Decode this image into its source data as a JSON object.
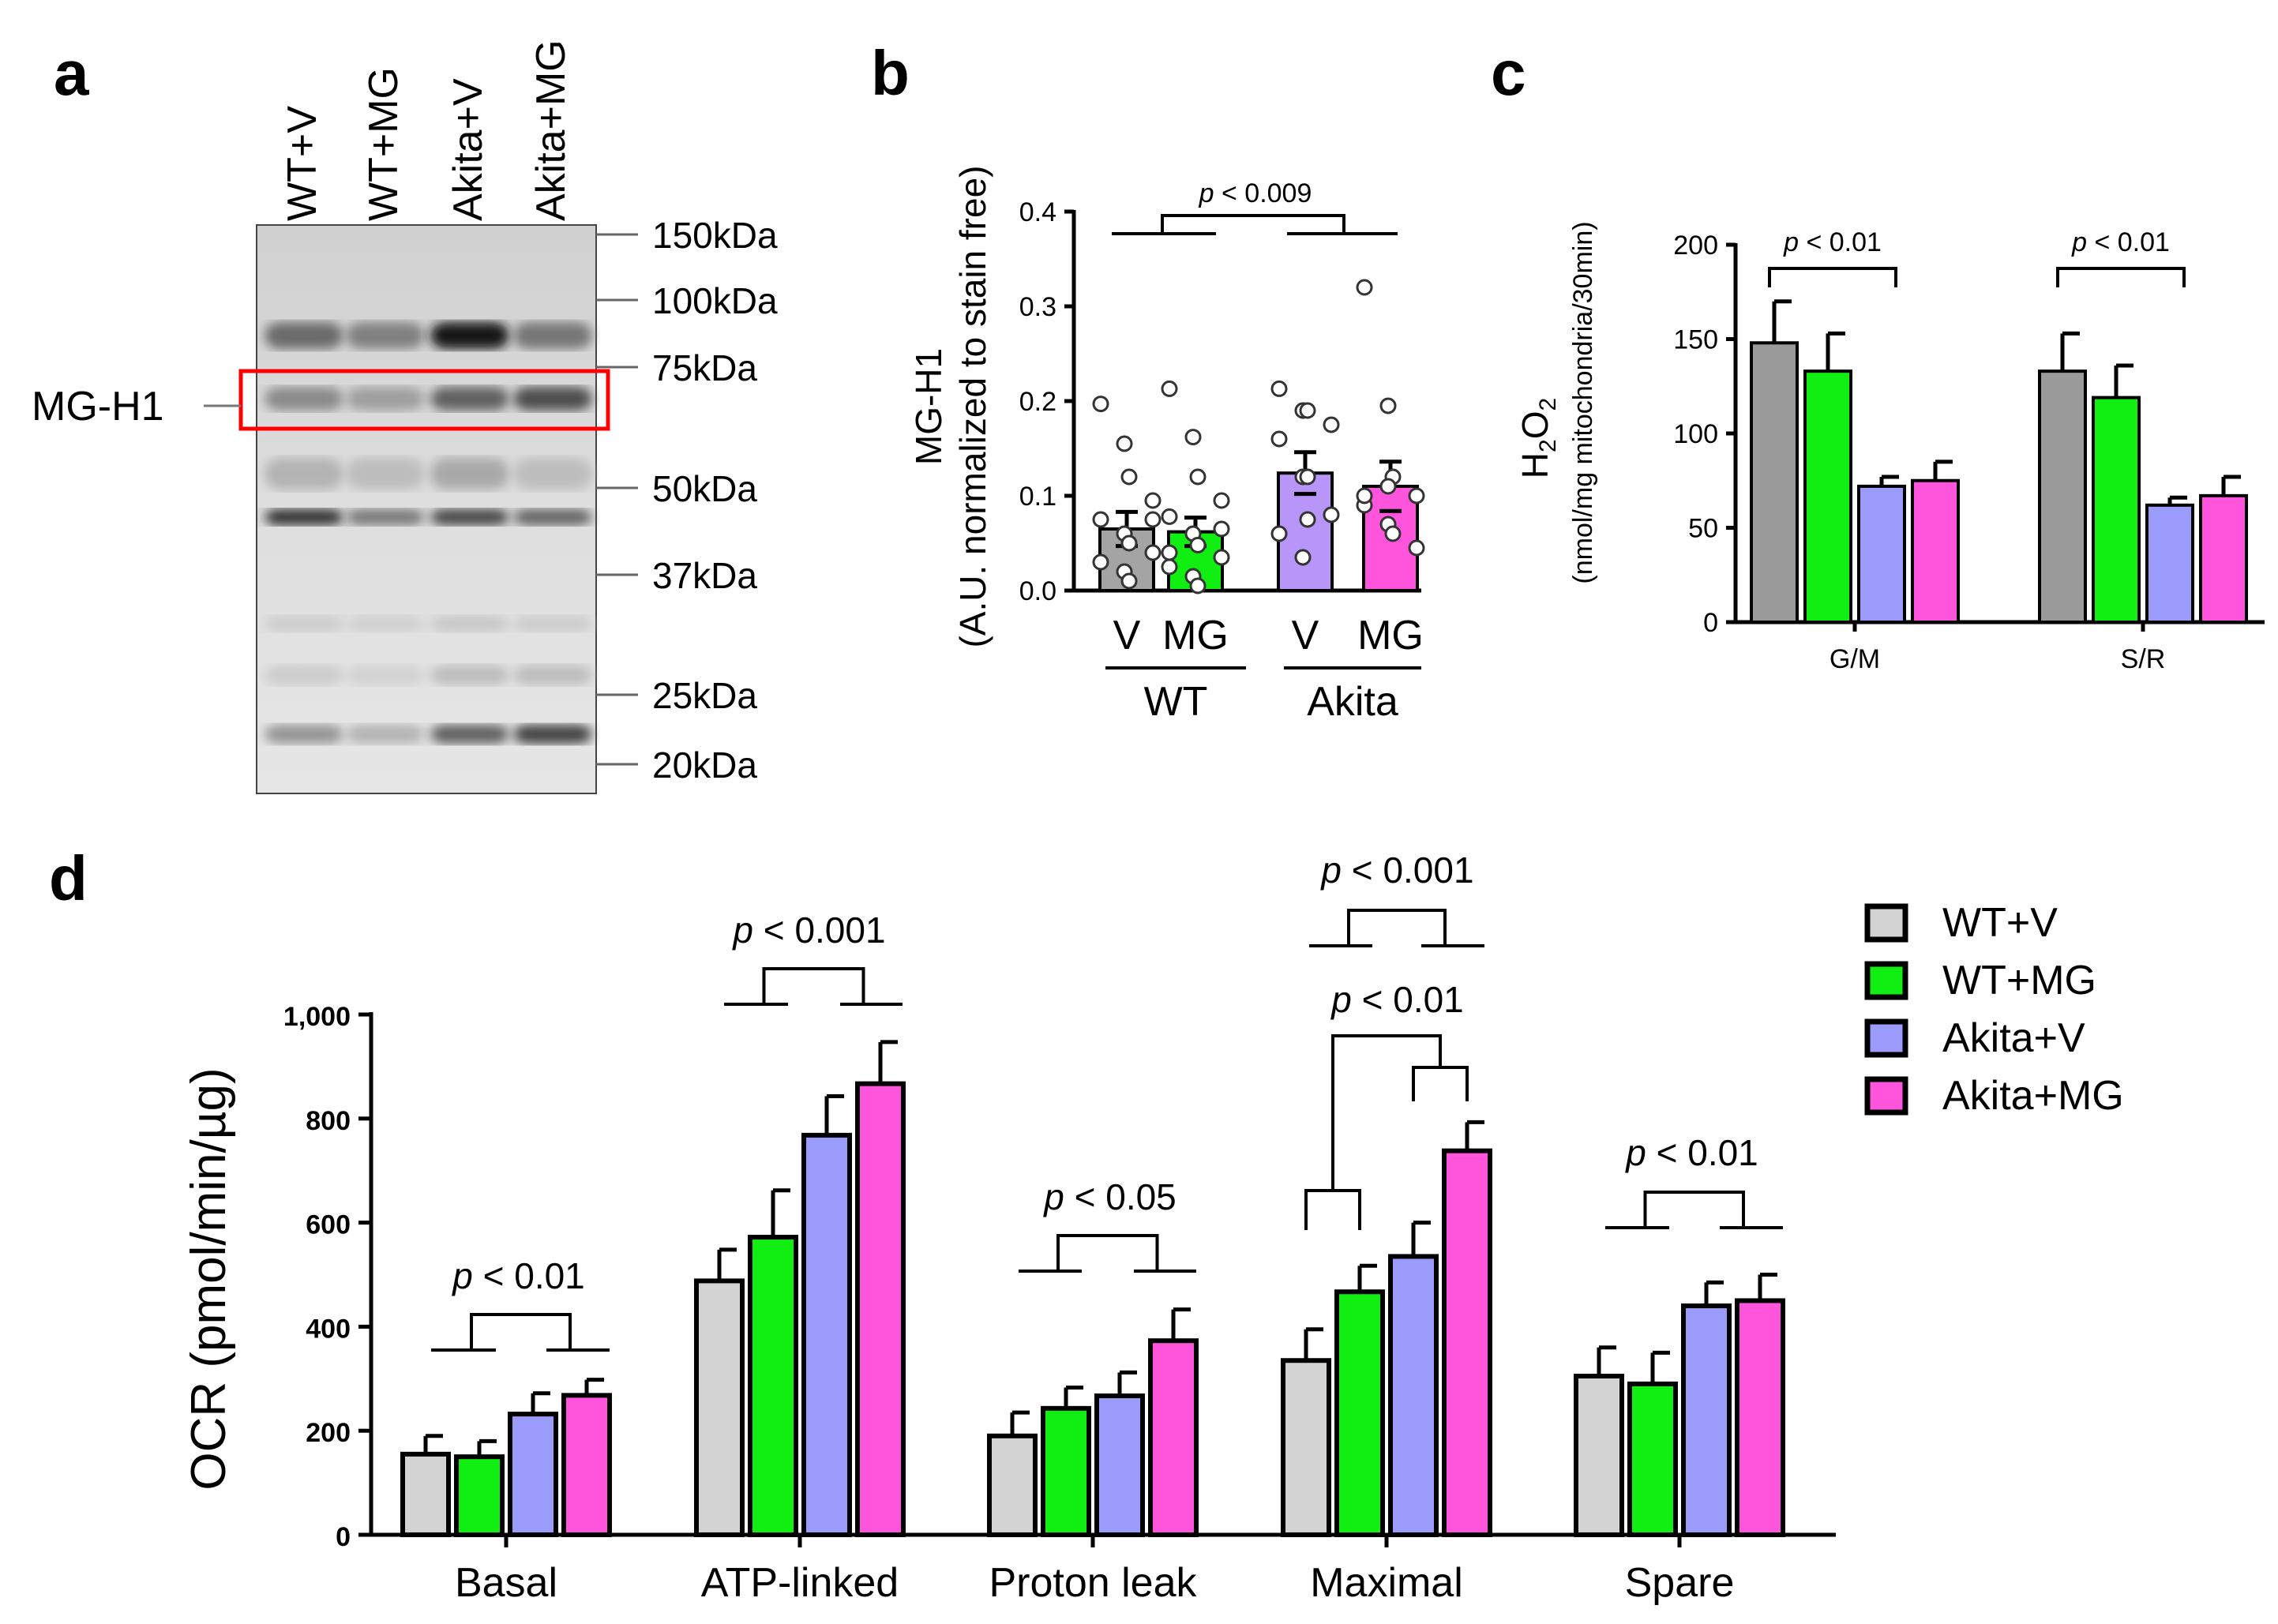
{
  "colors": {
    "wt_v": "#d3d3d3",
    "wt_mg": "#11ee11",
    "akita_v": "#9b9bfb",
    "akita_mg": "#ff55dd",
    "c_wt_v": "#9a9a9a",
    "b_wt_v": "#a4a4a4",
    "b_akita_v": "#b895f8",
    "gel_box": "#ff0000"
  },
  "panel_a": {
    "label": "a",
    "lanes": [
      "WT+V",
      "WT+MG",
      "Akita+V",
      "Akita+MG"
    ],
    "markers": [
      "150kDa",
      "100kDa",
      "75kDa",
      "50kDa",
      "37kDa",
      "25kDa",
      "20kDa"
    ],
    "band_label": "MG-H1"
  },
  "chart_data": [
    {
      "id": "b",
      "type": "bar",
      "panel_label": "b",
      "title": "",
      "ylabel_lines": [
        "MG-H1",
        "(A.U. normalized to stain free)"
      ],
      "categories": [
        "V",
        "MG",
        "V",
        "MG"
      ],
      "groups": [
        {
          "name": "WT",
          "span": [
            0,
            1
          ]
        },
        {
          "name": "Akita",
          "span": [
            2,
            3
          ]
        }
      ],
      "values": [
        0.065,
        0.062,
        0.124,
        0.11
      ],
      "errors": [
        0.018,
        0.015,
        0.022,
        0.026
      ],
      "ylim": [
        0,
        0.4
      ],
      "yticks": [
        "0.0",
        "0.1",
        "0.2",
        "0.3",
        "0.4"
      ],
      "points": [
        [
          0.197,
          0.155,
          0.12,
          0.095,
          0.075,
          0.06,
          0.05,
          0.04,
          0.03,
          0.02,
          0.01,
          0.075
        ],
        [
          0.213,
          0.162,
          0.12,
          0.095,
          0.078,
          0.06,
          0.048,
          0.035,
          0.025,
          0.015,
          0.005,
          0.065,
          0.04
        ],
        [
          0.213,
          0.19,
          0.19,
          0.175,
          0.16,
          0.12,
          0.12,
          0.08,
          0.06,
          0.035,
          0.075
        ],
        [
          0.32,
          0.195,
          0.12,
          0.1,
          0.09,
          0.07,
          0.06,
          0.045,
          0.1,
          0.11
        ]
      ],
      "annotation": {
        "text": "p < 0.009",
        "p": "p",
        "rest": " < 0.009"
      }
    },
    {
      "id": "c",
      "type": "bar",
      "panel_label": "c",
      "title": "",
      "ylabel_lines": [
        "H2O2",
        "(nmol/mg mitochondria/30min)"
      ],
      "ylabel_main": "H",
      "ylabel_sub1": "2",
      "ylabel_o": "O",
      "ylabel_sub2": "2",
      "categories": [
        "G/M",
        "S/R"
      ],
      "series": [
        {
          "name": "WT+V",
          "values": [
            148,
            133
          ],
          "errors": [
            22,
            20
          ]
        },
        {
          "name": "WT+MG",
          "values": [
            133,
            119
          ],
          "errors": [
            20,
            17
          ]
        },
        {
          "name": "Akita+V",
          "values": [
            72,
            62
          ],
          "errors": [
            5,
            4
          ]
        },
        {
          "name": "Akita+MG",
          "values": [
            75,
            67
          ],
          "errors": [
            10,
            10
          ]
        }
      ],
      "ylim": [
        0,
        200
      ],
      "yticks": [
        "0",
        "50",
        "100",
        "150",
        "200"
      ],
      "annotations": [
        {
          "text": "p < 0.01",
          "p": "p",
          "rest": " < 0.01"
        },
        {
          "text": "p < 0.01",
          "p": "p",
          "rest": " < 0.01"
        }
      ]
    },
    {
      "id": "d",
      "type": "bar",
      "panel_label": "d",
      "title": "",
      "ylabel": "OCR (pmol/min/µg)",
      "categories": [
        "Basal",
        "ATP-linked",
        "Proton leak",
        "Maximal",
        "Spare"
      ],
      "series": [
        {
          "name": "WT+V",
          "values": [
            155,
            488,
            190,
            335,
            305
          ],
          "errors": [
            35,
            60,
            45,
            60,
            55
          ]
        },
        {
          "name": "WT+MG",
          "values": [
            150,
            572,
            243,
            467,
            290
          ],
          "errors": [
            30,
            90,
            40,
            50,
            60
          ]
        },
        {
          "name": "Akita+V",
          "values": [
            232,
            768,
            267,
            535,
            440
          ],
          "errors": [
            40,
            75,
            45,
            65,
            45
          ]
        },
        {
          "name": "Akita+MG",
          "values": [
            268,
            867,
            373,
            738,
            450
          ],
          "errors": [
            30,
            80,
            60,
            55,
            50
          ]
        }
      ],
      "ylim": [
        0,
        1000
      ],
      "yticks": [
        "0",
        "200",
        "400",
        "600",
        "800",
        "1,000"
      ],
      "legend": [
        "WT+V",
        "WT+MG",
        "Akita+V",
        "Akita+MG"
      ],
      "annotations": [
        {
          "text": "p < 0.01",
          "p": "p",
          "rest": " < 0.01"
        },
        {
          "text": "p < 0.001",
          "p": "p",
          "rest": " < 0.001"
        },
        {
          "text": "p < 0.05",
          "p": "p",
          "rest": " < 0.05"
        },
        {
          "text": "p < 0.001",
          "p": "p",
          "rest": " < 0.001"
        },
        {
          "text": "p < 0.01",
          "p": "p",
          "rest": " < 0.01"
        },
        {
          "text": "p < 0.01",
          "p": "p",
          "rest": " < 0.01"
        }
      ]
    }
  ]
}
